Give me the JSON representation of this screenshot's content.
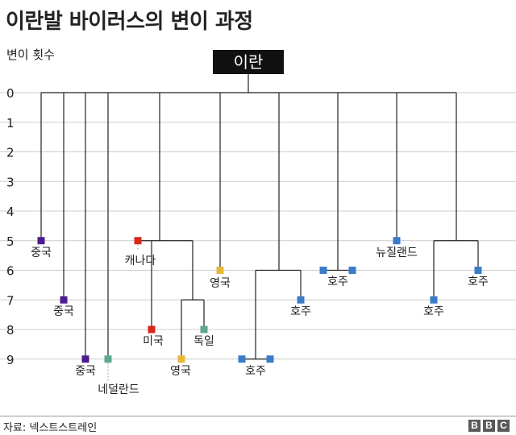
{
  "title": "이란발 바이러스의 변이 과정",
  "y_axis": {
    "label": "변이 횟수",
    "ticks": [
      0,
      1,
      2,
      3,
      4,
      5,
      6,
      7,
      8,
      9
    ]
  },
  "root": {
    "label": "이란"
  },
  "countries": {
    "china_1": "중국",
    "china_2": "중국",
    "china_3": "중국",
    "netherlands": "네덜란드",
    "canada": "캐나다",
    "usa": "미국",
    "uk_1": "영국",
    "uk_2": "영국",
    "germany": "독일",
    "australia_1": "호주",
    "australia_2": "호주",
    "australia_3": "호주",
    "australia_4": "호주",
    "australia_5": "호주",
    "new_zealand": "뉴질랜드"
  },
  "colors": {
    "china": "#4b1d8f",
    "teal": "#5fa890",
    "red": "#d8281e",
    "yellow": "#e8b938",
    "blue": "#3a7cc8",
    "line": "#222222",
    "grid": "#cccccc",
    "root_bg": "#111111"
  },
  "footer": {
    "source": "자료: 넥스트스트레인",
    "logo": [
      "B",
      "B",
      "C"
    ]
  }
}
